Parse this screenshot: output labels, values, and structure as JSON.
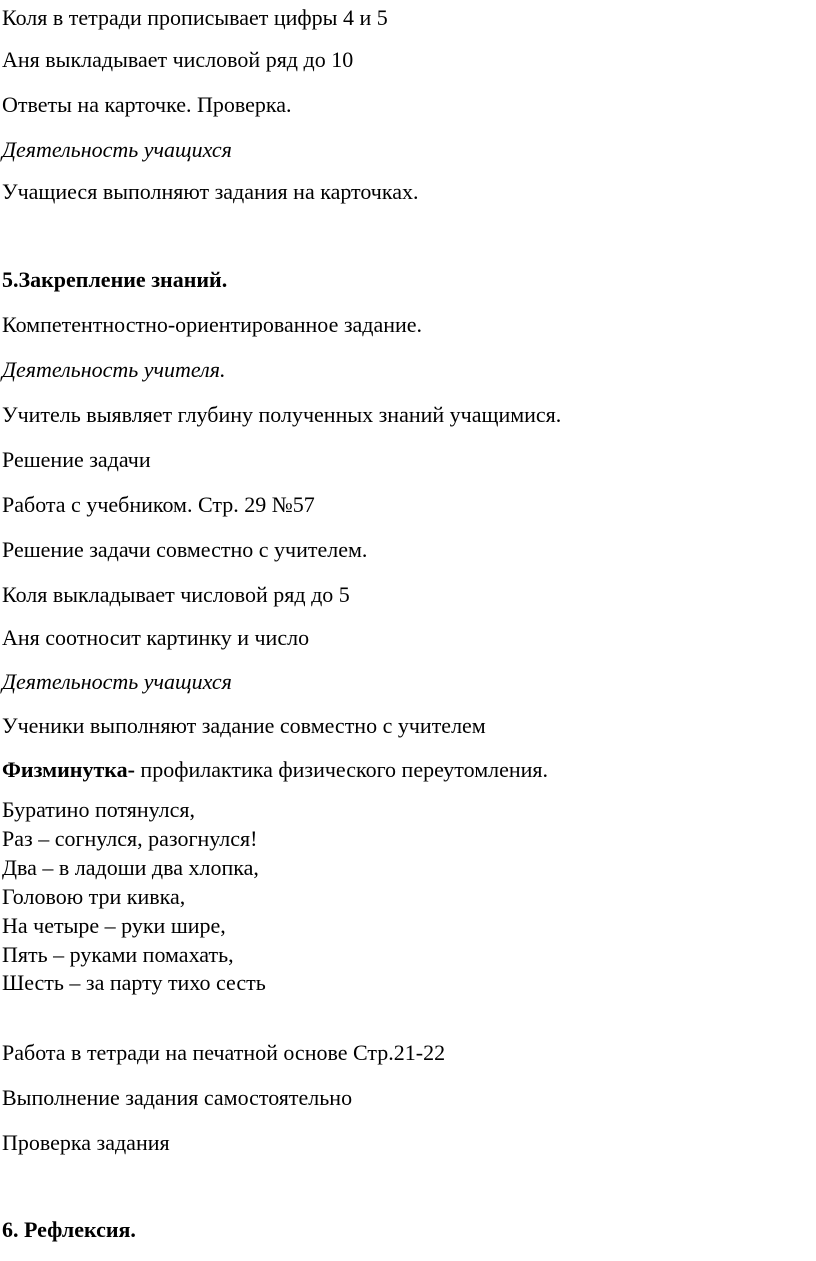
{
  "lines": [
    "Коля в тетради прописывает цифры 4 и 5",
    "Аня выкладывает числовой ряд до 10",
    "Ответы на карточке. Проверка.",
    "Деятельность учащихся",
    "Учащиеся выполняют задания на карточках.",
    "5.Закрепление знаний.",
    "Компетентностно-ориентированное задание.",
    "Деятельность учителя.",
    "Учитель выявляет глубину полученных знаний учащимися.",
    "Решение задачи",
    "Работа с учебником. Стр. 29 №57",
    "Решение задачи совместно с учителем.",
    "Коля выкладывает числовой ряд до 5",
    "Аня соотносит картинку и число",
    "Деятельность учащихся",
    "Ученики выполняют задание совместно с учителем"
  ],
  "fizminutka": {
    "label": "Физминутка-",
    "text": " профилактика физического переутомления."
  },
  "poem": [
    "Буратино потянулся,",
    "Раз – согнулся, разогнулся!",
    "Два – в ладоши два хлопка,",
    "Головою три кивка,",
    "На четыре – руки шире,",
    "Пять – руками помахать,",
    "Шесть – за парту тихо сесть"
  ],
  "after": [
    "Работа в тетради на печатной основе Стр.21-22",
    "Выполнение задания самостоятельно",
    "Проверка задания"
  ],
  "section6": "6. Рефлексия."
}
